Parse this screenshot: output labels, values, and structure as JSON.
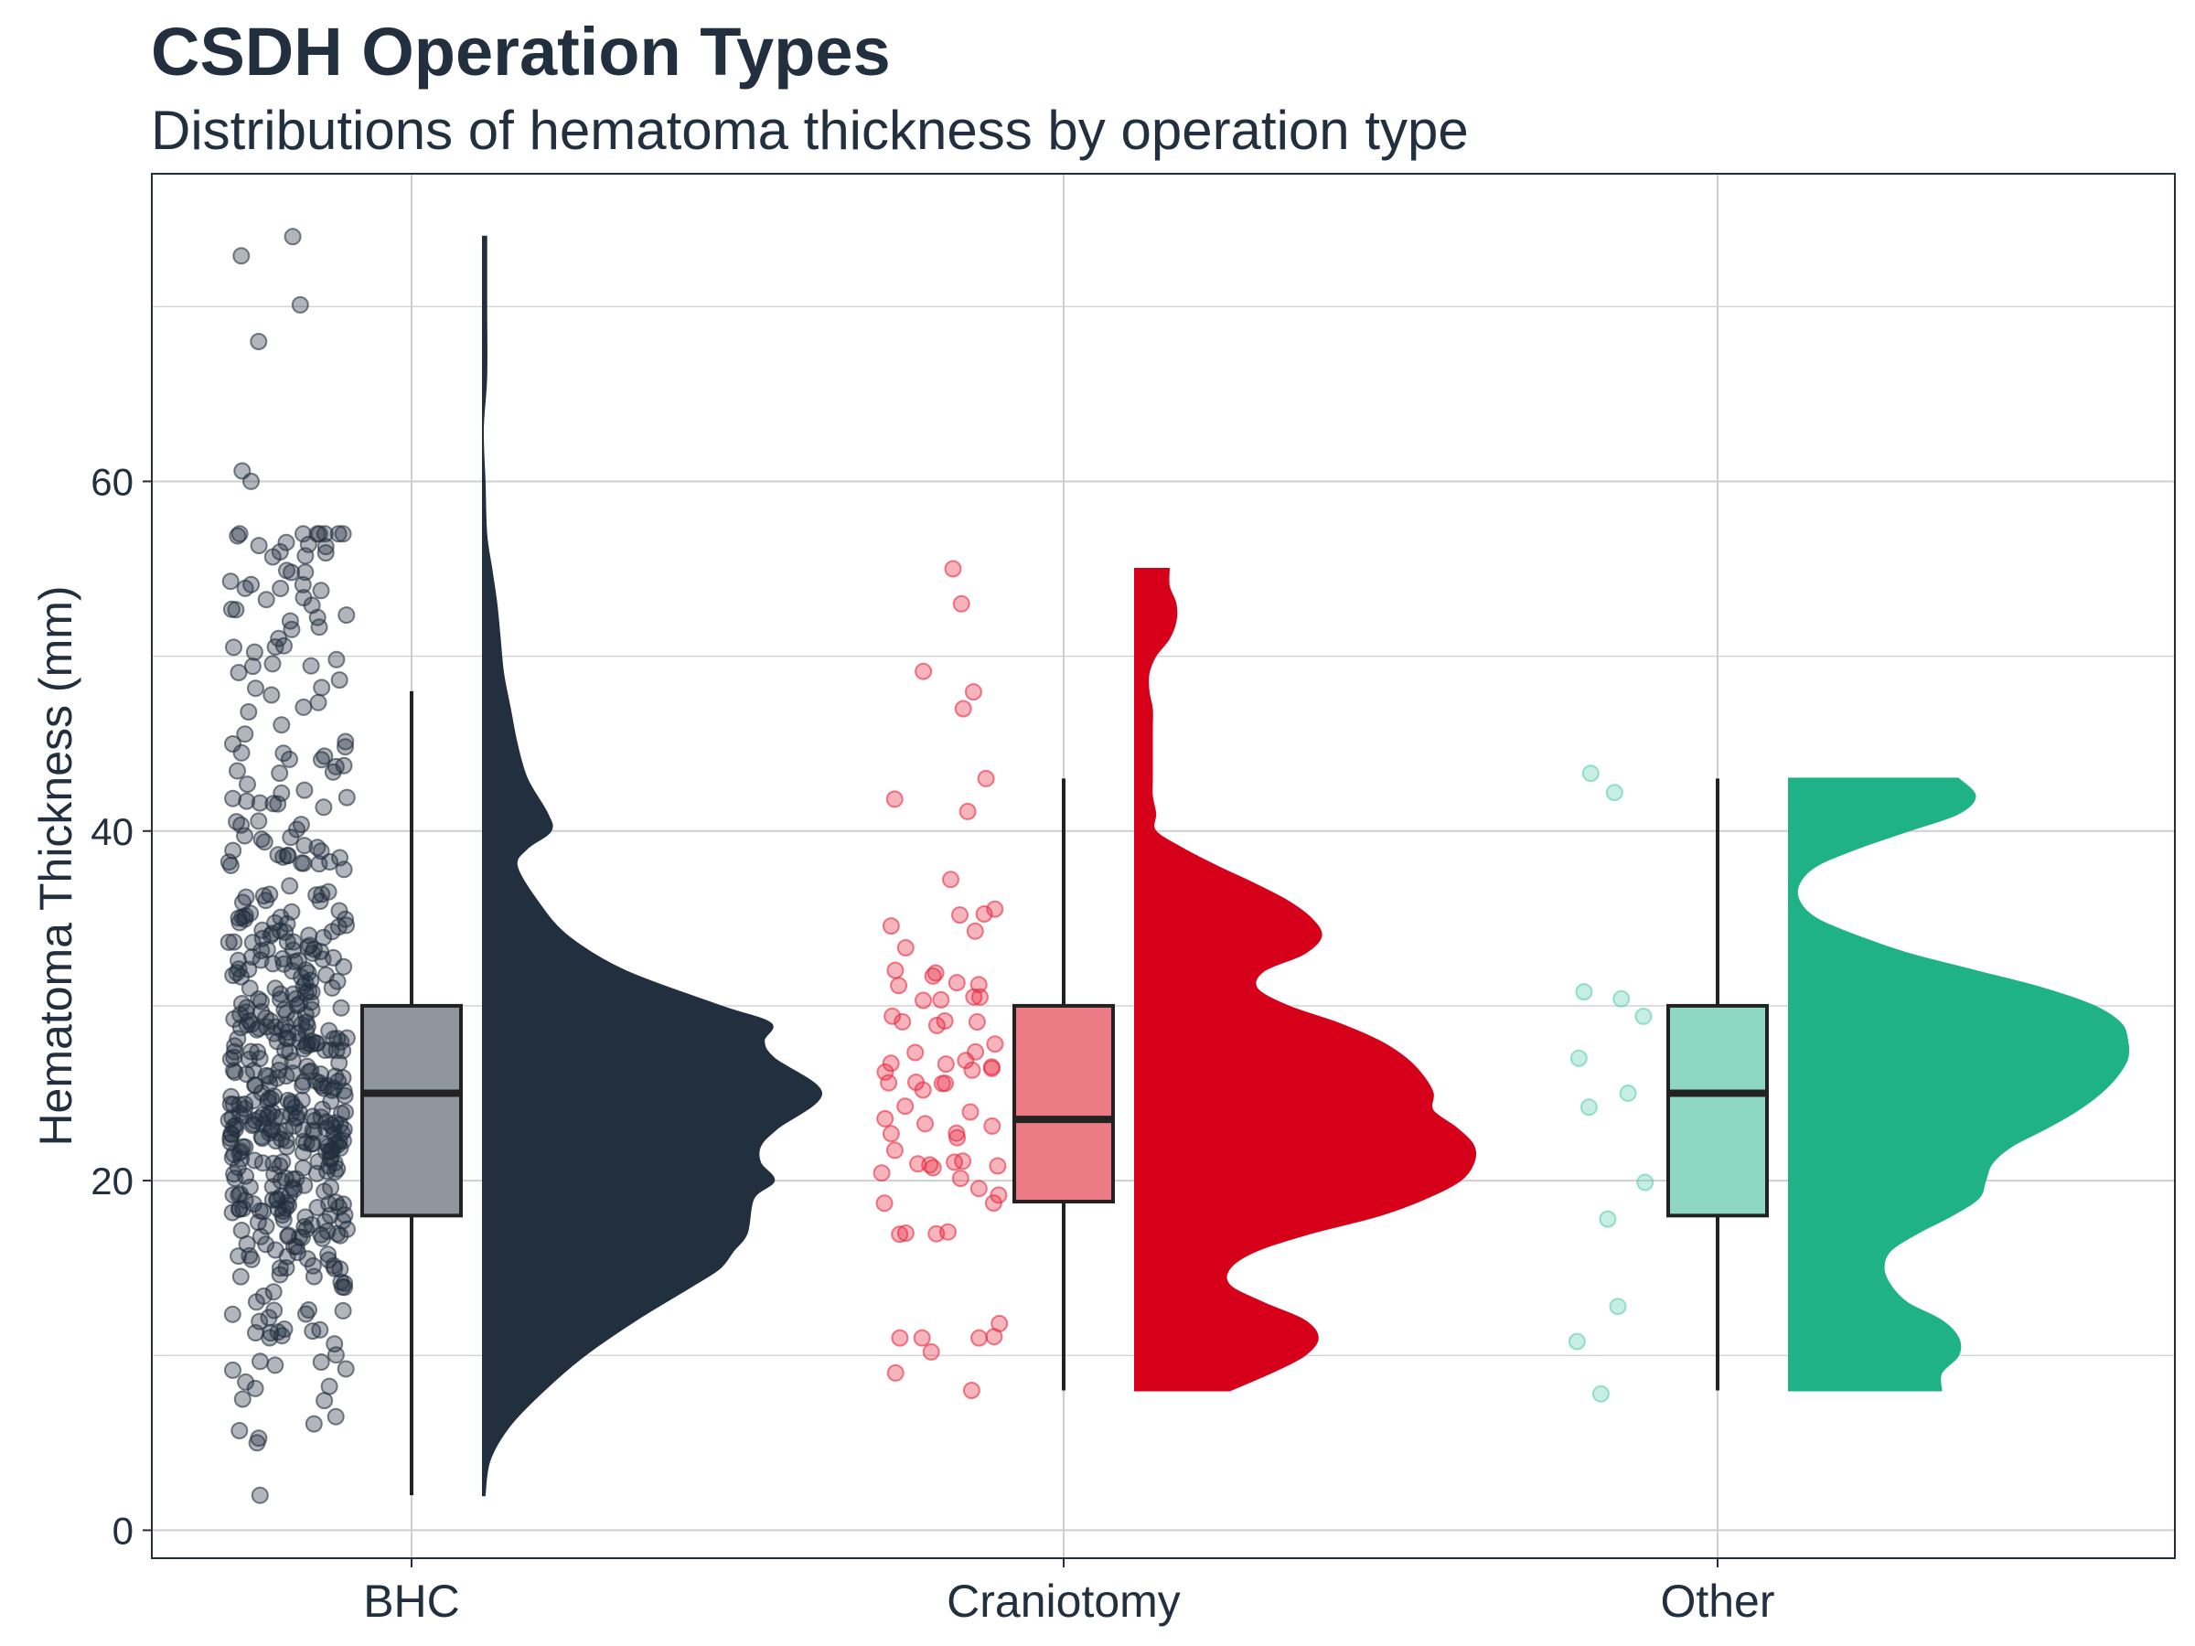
{
  "chart_data": {
    "type": "raincloud",
    "title": "CSDH Operation Types",
    "subtitle": "Distributions of hematoma thickness by operation type",
    "xlabel": "",
    "ylabel": "Hematoma Thickness (mm)",
    "ylim": [
      -1.6,
      77.6
    ],
    "yticks": [
      0,
      20,
      40,
      60
    ],
    "grid": true,
    "legend": "none",
    "categories": [
      "BHC",
      "Craniotomy",
      "Other"
    ],
    "series": [
      {
        "category": "BHC",
        "color": "#222f3e",
        "point_color": "#222f3e",
        "box_fill": "#8f969e",
        "box": {
          "min": 2,
          "q1": 18,
          "median": 25,
          "q3": 30,
          "max": 48
        },
        "density_range": [
          2,
          74
        ],
        "density": [
          [
            2,
            0.005
          ],
          [
            4,
            0.02
          ],
          [
            6,
            0.08
          ],
          [
            8,
            0.18
          ],
          [
            10,
            0.3
          ],
          [
            12,
            0.45
          ],
          [
            14,
            0.62
          ],
          [
            15,
            0.7
          ],
          [
            16,
            0.74
          ],
          [
            17,
            0.78
          ],
          [
            19,
            0.8
          ],
          [
            20,
            0.86
          ],
          [
            21,
            0.82
          ],
          [
            22,
            0.82
          ],
          [
            23,
            0.87
          ],
          [
            25,
            1.0
          ],
          [
            27,
            0.86
          ],
          [
            28,
            0.83
          ],
          [
            29,
            0.85
          ],
          [
            30,
            0.7
          ],
          [
            32,
            0.42
          ],
          [
            34,
            0.25
          ],
          [
            36,
            0.16
          ],
          [
            38,
            0.1
          ],
          [
            39,
            0.13
          ],
          [
            40,
            0.2
          ],
          [
            41,
            0.19
          ],
          [
            43,
            0.13
          ],
          [
            45,
            0.1
          ],
          [
            47,
            0.08
          ],
          [
            49,
            0.06
          ],
          [
            51,
            0.05
          ],
          [
            53,
            0.04
          ],
          [
            55,
            0.025
          ],
          [
            57,
            0.01
          ],
          [
            60,
            0.005
          ],
          [
            63,
            0.0
          ],
          [
            66,
            0.01
          ],
          [
            70,
            0.01
          ],
          [
            74,
            0.01
          ]
        ],
        "points_label": "individual observations",
        "n_points": 520,
        "points_sample": [
          2.0,
          5.7,
          6.5,
          7.5,
          60.0,
          60.6,
          68.0,
          70.1,
          72.9,
          74.0
        ]
      },
      {
        "category": "Craniotomy",
        "color": "#d7001b",
        "point_color": "#e8293f",
        "box_fill": "#ec7b86",
        "box": {
          "min": 8,
          "q1": 18.8,
          "median": 23.5,
          "q3": 30,
          "max": 43
        },
        "density_range": [
          8,
          55
        ],
        "density": [
          [
            8,
            0.28
          ],
          [
            9,
            0.4
          ],
          [
            10,
            0.5
          ],
          [
            11,
            0.54
          ],
          [
            12,
            0.5
          ],
          [
            13,
            0.38
          ],
          [
            14,
            0.28
          ],
          [
            15,
            0.28
          ],
          [
            16,
            0.36
          ],
          [
            17,
            0.52
          ],
          [
            18,
            0.72
          ],
          [
            19,
            0.86
          ],
          [
            20,
            0.96
          ],
          [
            21,
            1.0
          ],
          [
            22,
            1.0
          ],
          [
            23,
            0.95
          ],
          [
            24,
            0.88
          ],
          [
            25,
            0.88
          ],
          [
            26,
            0.85
          ],
          [
            27,
            0.8
          ],
          [
            28,
            0.72
          ],
          [
            29,
            0.6
          ],
          [
            30,
            0.45
          ],
          [
            31,
            0.36
          ],
          [
            32,
            0.38
          ],
          [
            33,
            0.5
          ],
          [
            34,
            0.55
          ],
          [
            35,
            0.52
          ],
          [
            36,
            0.45
          ],
          [
            37,
            0.35
          ],
          [
            38,
            0.24
          ],
          [
            39,
            0.14
          ],
          [
            40,
            0.06
          ],
          [
            41,
            0.06
          ],
          [
            42,
            0.05
          ],
          [
            43,
            0.05
          ],
          [
            44,
            0.05
          ],
          [
            45,
            0.05
          ],
          [
            46,
            0.05
          ],
          [
            47,
            0.05
          ],
          [
            48,
            0.04
          ],
          [
            49,
            0.04
          ],
          [
            50,
            0.06
          ],
          [
            51,
            0.1
          ],
          [
            52,
            0.12
          ],
          [
            53,
            0.12
          ],
          [
            54,
            0.1
          ],
          [
            55,
            0.1
          ]
        ],
        "points_label": "individual observations",
        "n_points": 70,
        "points_sample": [
          8.0,
          9.0,
          10.2,
          11.0,
          43.0,
          47.0,
          53.0,
          55.0
        ]
      },
      {
        "category": "Other",
        "color": "#20b287",
        "point_color": "#5ccfab",
        "box_fill": "#8ed8c3",
        "box": {
          "min": 8,
          "q1": 18,
          "median": 25,
          "q3": 30,
          "max": 43
        },
        "density_range": [
          8,
          43
        ],
        "density": [
          [
            8,
            0.45
          ],
          [
            9,
            0.45
          ],
          [
            10,
            0.5
          ],
          [
            11,
            0.5
          ],
          [
            12,
            0.45
          ],
          [
            13,
            0.35
          ],
          [
            14,
            0.3
          ],
          [
            15,
            0.28
          ],
          [
            16,
            0.3
          ],
          [
            17,
            0.38
          ],
          [
            18,
            0.48
          ],
          [
            19,
            0.56
          ],
          [
            20,
            0.58
          ],
          [
            21,
            0.6
          ],
          [
            22,
            0.66
          ],
          [
            23,
            0.76
          ],
          [
            24,
            0.85
          ],
          [
            25,
            0.92
          ],
          [
            26,
            0.97
          ],
          [
            27,
            1.0
          ],
          [
            28,
            1.0
          ],
          [
            29,
            0.98
          ],
          [
            30,
            0.9
          ],
          [
            31,
            0.75
          ],
          [
            32,
            0.55
          ],
          [
            33,
            0.35
          ],
          [
            34,
            0.2
          ],
          [
            35,
            0.08
          ],
          [
            36,
            0.03
          ],
          [
            37,
            0.03
          ],
          [
            38,
            0.08
          ],
          [
            39,
            0.2
          ],
          [
            40,
            0.35
          ],
          [
            41,
            0.5
          ],
          [
            42,
            0.55
          ],
          [
            43,
            0.5
          ]
        ],
        "points_label": "individual observations",
        "points": [
          [
            0.33,
            43.3
          ],
          [
            0.47,
            42.2
          ],
          [
            0.29,
            30.8
          ],
          [
            0.51,
            30.4
          ],
          [
            0.64,
            29.4
          ],
          [
            0.26,
            27.0
          ],
          [
            0.32,
            24.2
          ],
          [
            0.55,
            25.0
          ],
          [
            0.65,
            19.9
          ],
          [
            0.43,
            17.8
          ],
          [
            0.49,
            12.8
          ],
          [
            0.25,
            10.8
          ],
          [
            0.39,
            7.8
          ]
        ]
      }
    ]
  }
}
